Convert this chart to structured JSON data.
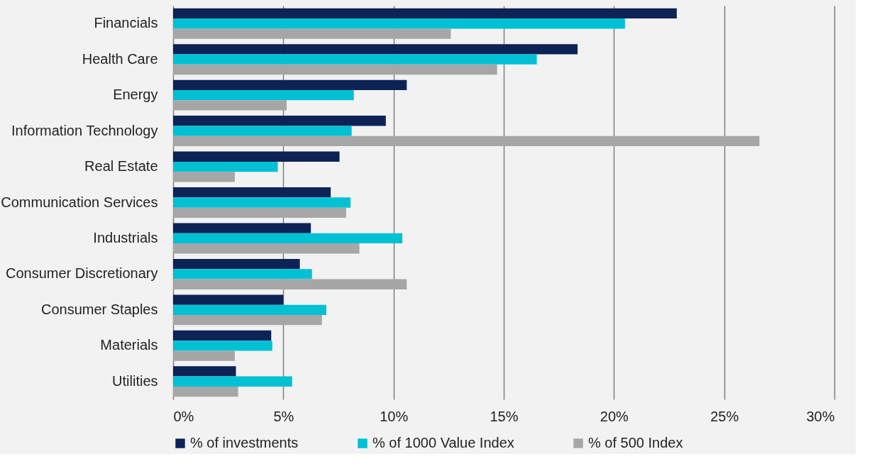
{
  "chart_data": {
    "type": "bar",
    "orientation": "horizontal",
    "categories": [
      "Financials",
      "Health Care",
      "Energy",
      "Information Technology",
      "Real Estate",
      "Communication Services",
      "Industrials",
      "Consumer Discretionary",
      "Consumer Staples",
      "Materials",
      "Utilities"
    ],
    "series": [
      {
        "name": "% of investments",
        "color": "#0d2356",
        "values": [
          22.85,
          18.35,
          10.6,
          9.65,
          7.55,
          7.15,
          6.25,
          5.75,
          5.0,
          4.45,
          2.85
        ]
      },
      {
        "name": "% of 1000 Value Index",
        "color": "#00c0d4",
        "values": [
          20.5,
          16.5,
          8.2,
          8.1,
          4.75,
          8.05,
          10.4,
          6.3,
          6.95,
          4.5,
          5.4
        ]
      },
      {
        "name": "% of 500 Index",
        "color": "#a6a6a6",
        "values": [
          12.6,
          14.7,
          5.15,
          26.6,
          2.8,
          7.85,
          8.45,
          10.6,
          6.75,
          2.8,
          2.95
        ]
      }
    ],
    "xlim": [
      0,
      30
    ],
    "xticks": [
      {
        "value": 0,
        "label": "0%"
      },
      {
        "value": 5,
        "label": "5%"
      },
      {
        "value": 10,
        "label": "10%"
      },
      {
        "value": 15,
        "label": "15%"
      },
      {
        "value": 20,
        "label": "20%"
      },
      {
        "value": 25,
        "label": "25%"
      },
      {
        "value": 30,
        "label": "30%"
      }
    ],
    "grid": "x",
    "legend": "bottom"
  }
}
